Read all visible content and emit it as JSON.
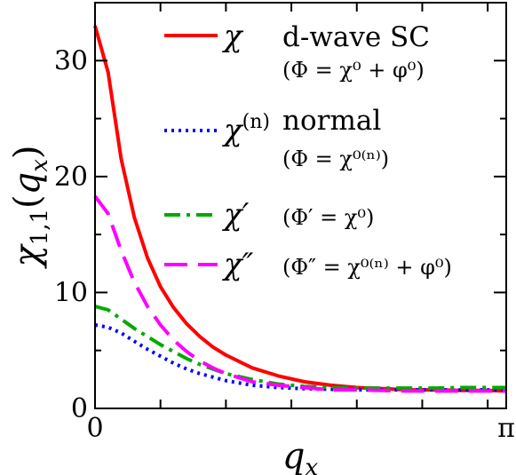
{
  "chart_data": {
    "type": "line",
    "title": "",
    "xlabel": "q_x",
    "xlabel_main": "q",
    "xlabel_sub": "x",
    "ylabel": "χ_{1,1}(q_x)",
    "ylim": [
      0,
      35
    ],
    "xlim": [
      0,
      3.14159
    ],
    "x_ticks": [
      {
        "value": 0,
        "label": "0"
      },
      {
        "value": 3.14159,
        "label": "π"
      }
    ],
    "y_ticks": [
      {
        "value": 0,
        "label": "0"
      },
      {
        "value": 10,
        "label": "10"
      },
      {
        "value": 20,
        "label": "20"
      },
      {
        "value": 30,
        "label": "30"
      }
    ],
    "x_minor_ticks": [
      0.5,
      1.0,
      1.5,
      2.0,
      2.5,
      3.0
    ],
    "y_minor_ticks": [
      5,
      15,
      25
    ],
    "grid": false,
    "legend_placement": "top-right",
    "x": [
      0,
      0.1,
      0.2,
      0.3,
      0.4,
      0.5,
      0.6,
      0.7,
      0.8,
      0.9,
      1.0,
      1.2,
      1.4,
      1.6,
      1.8,
      2.0,
      2.2,
      2.4,
      2.6,
      2.8,
      3.0,
      3.14
    ],
    "series": [
      {
        "name": "χ",
        "color": "#ff0000",
        "dash": "solid",
        "values": [
          33.0,
          29.0,
          21.5,
          16.5,
          13.0,
          10.5,
          8.7,
          7.3,
          6.2,
          5.3,
          4.6,
          3.5,
          2.8,
          2.3,
          2.0,
          1.8,
          1.7,
          1.6,
          1.6,
          1.55,
          1.55,
          1.5
        ]
      },
      {
        "name": "χ^(n)",
        "color": "#0000ff",
        "dash": "dot",
        "values": [
          7.2,
          7.0,
          6.5,
          5.8,
          5.1,
          4.5,
          3.9,
          3.4,
          3.0,
          2.7,
          2.4,
          2.0,
          1.8,
          1.7,
          1.65,
          1.6,
          1.6,
          1.6,
          1.6,
          1.6,
          1.6,
          1.6
        ]
      },
      {
        "name": "χ′",
        "color": "#00aa00",
        "dash": "dashdot",
        "values": [
          8.8,
          8.5,
          7.7,
          6.9,
          6.2,
          5.5,
          4.9,
          4.3,
          3.8,
          3.4,
          3.0,
          2.5,
          2.1,
          1.9,
          1.8,
          1.75,
          1.75,
          1.75,
          1.75,
          1.8,
          1.8,
          1.8
        ]
      },
      {
        "name": "χ″",
        "color": "#ff00ff",
        "dash": "dash",
        "values": [
          18.3,
          16.8,
          13.6,
          10.9,
          8.8,
          7.2,
          5.9,
          4.9,
          4.1,
          3.5,
          3.0,
          2.3,
          2.0,
          1.8,
          1.6,
          1.6,
          1.55,
          1.5,
          1.5,
          1.5,
          1.5,
          1.5
        ]
      }
    ],
    "legend": [
      {
        "symbol": "χ",
        "symbol_sup": "",
        "text": "d-wave SC",
        "note": "(Φ = χ⁰ + φ⁰)"
      },
      {
        "symbol": "χ",
        "symbol_sup": "(n)",
        "text": "normal",
        "note": "(Φ = χ⁰⁽ⁿ⁾)"
      },
      {
        "symbol": "χ′",
        "symbol_sup": "",
        "text": "",
        "note": "(Φ′ = χ⁰)"
      },
      {
        "symbol": "χ″",
        "symbol_sup": "",
        "text": "",
        "note": "(Φ″ = χ⁰⁽ⁿ⁾ + φ⁰)"
      }
    ]
  }
}
